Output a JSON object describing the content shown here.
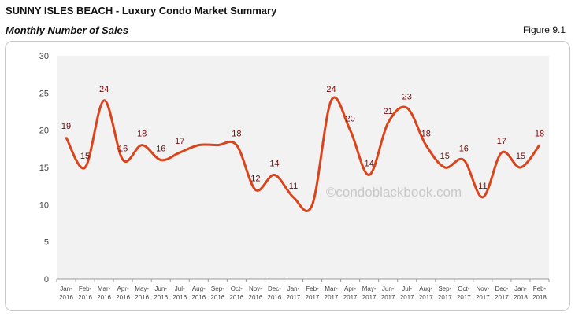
{
  "header": {
    "title": "SUNNY ISLES BEACH - Luxury Condo Market Summary",
    "subtitle": "Monthly Number of Sales",
    "figure_label": "Figure 9.1"
  },
  "watermark": "©condoblackbook.com",
  "chart_data": {
    "type": "line",
    "smooth": true,
    "title": "Monthly Number of Sales",
    "xlabel": "",
    "ylabel": "",
    "ylim": [
      0,
      30
    ],
    "yticks": [
      0,
      5,
      10,
      15,
      20,
      25,
      30
    ],
    "grid": false,
    "line_color": "#d9441c",
    "label_color": "#7a0a0a",
    "plot_background": "#f2f2f2",
    "categories": [
      "Jan-2016",
      "Feb-2016",
      "Mar-2016",
      "Apr-2016",
      "May-2016",
      "Jun-2016",
      "Jul-2016",
      "Aug-2016",
      "Sep-2016",
      "Oct-2016",
      "Nov-2016",
      "Dec-2016",
      "Jan-2017",
      "Feb-2017",
      "Mar-2017",
      "Apr-2017",
      "May-2017",
      "Jun-2017",
      "Jul-2017",
      "Aug-2017",
      "Sep-2017",
      "Oct-2017",
      "Nov-2017",
      "Dec-2017",
      "Jan-2018",
      "Feb-2018"
    ],
    "values": [
      19,
      15,
      24,
      16,
      18,
      16,
      17,
      18,
      18,
      18,
      12,
      14,
      11,
      10,
      24,
      20,
      14,
      21,
      23,
      18,
      15,
      16,
      11,
      17,
      15,
      18
    ],
    "labeled": [
      true,
      true,
      true,
      true,
      true,
      true,
      true,
      false,
      false,
      true,
      true,
      true,
      true,
      false,
      true,
      true,
      true,
      true,
      true,
      true,
      true,
      true,
      true,
      true,
      true,
      true
    ]
  }
}
